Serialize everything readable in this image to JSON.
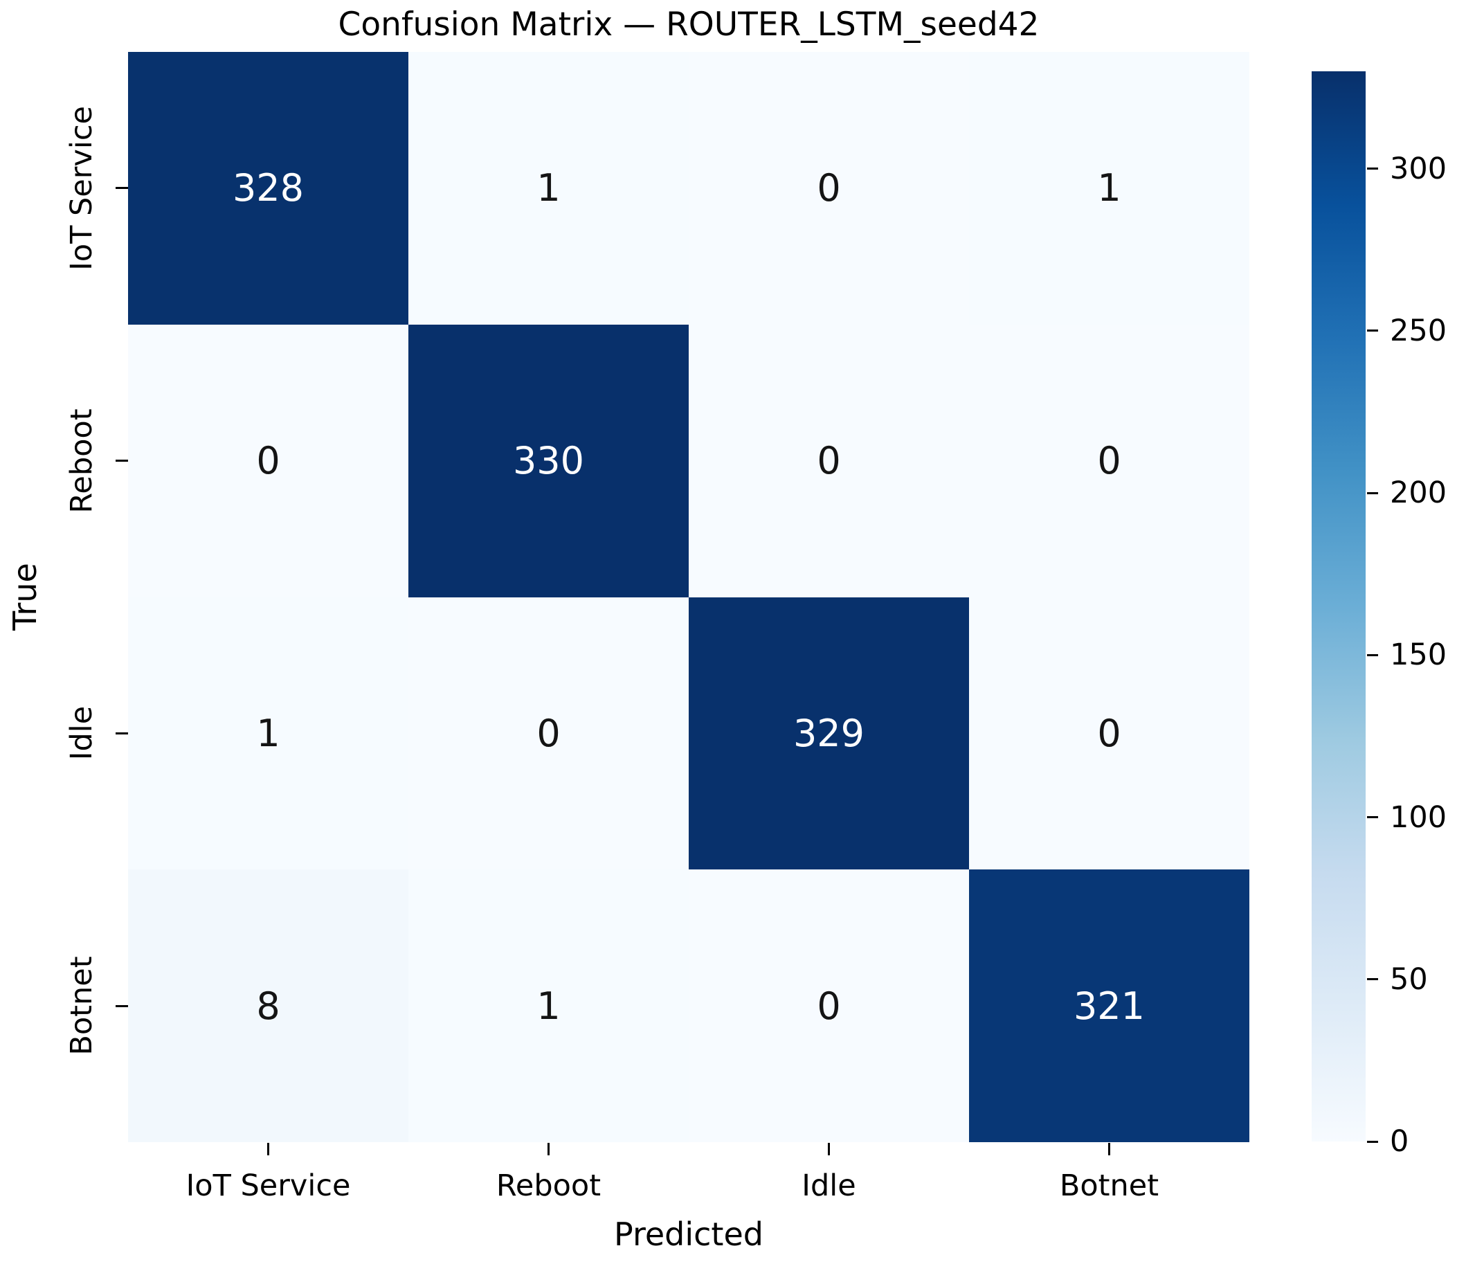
{
  "figure": {
    "title": "Confusion Matrix — ROUTER_LSTM_seed42",
    "background_color": "#ffffff"
  },
  "chart_data": {
    "type": "heatmap",
    "title": "Confusion Matrix — ROUTER_LSTM_seed42",
    "xlabel": "Predicted",
    "ylabel": "True",
    "x_categories": [
      "IoT Service",
      "Reboot",
      "Idle",
      "Botnet"
    ],
    "y_categories": [
      "IoT Service",
      "Reboot",
      "Idle",
      "Botnet"
    ],
    "matrix": [
      [
        328,
        1,
        0,
        1
      ],
      [
        0,
        330,
        0,
        0
      ],
      [
        1,
        0,
        329,
        0
      ],
      [
        8,
        1,
        0,
        321
      ]
    ],
    "vmin": 0,
    "vmax": 330,
    "colormap": "Blues",
    "colormap_stops": [
      "#f7fbff",
      "#deebf7",
      "#c6dbef",
      "#9ecae1",
      "#6baed6",
      "#4292c6",
      "#2171b5",
      "#08519c",
      "#08306b"
    ],
    "colorbar_ticks": [
      0,
      50,
      100,
      150,
      200,
      250,
      300
    ],
    "legend_position": "right-colorbar",
    "grid": false,
    "annotation_dark_text": "#141414",
    "annotation_light_text": "#ffffff",
    "tick_color": "#000000"
  }
}
